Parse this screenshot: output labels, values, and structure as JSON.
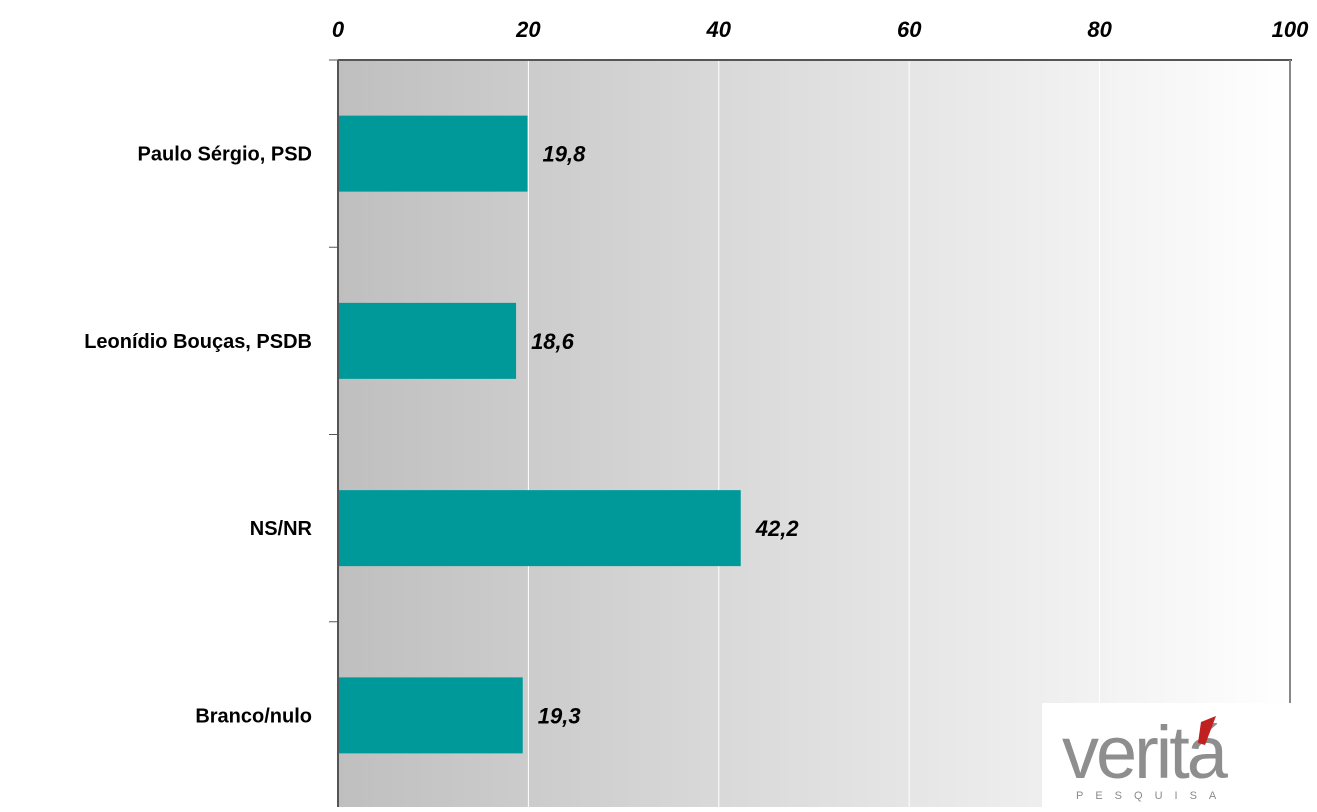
{
  "chart_data": {
    "type": "bar",
    "orientation": "horizontal",
    "categories": [
      "Paulo Sérgio, PSD",
      "Leonídio Bouças, PSDB",
      "NS/NR",
      "Branco/nulo"
    ],
    "values": [
      19.8,
      18.6,
      42.2,
      19.3
    ],
    "value_labels": [
      "19,8",
      "18,6",
      "42,2",
      "19,3"
    ],
    "xlim": [
      0,
      100
    ],
    "x_ticks": [
      0,
      20,
      40,
      60,
      80,
      100
    ],
    "x_tick_labels": [
      "0",
      "20",
      "40",
      "60",
      "80",
      "100"
    ],
    "x_axis_position": "top",
    "grid": true,
    "bar_color": "#009999",
    "plot_background": "gray-to-white horizontal gradient",
    "title": "",
    "xlabel": "",
    "ylabel": ""
  },
  "logo": {
    "text": "veritá",
    "subtext": "PESQUISA",
    "main_color": "#8e8e8e",
    "accent_color": "#c0201f"
  }
}
